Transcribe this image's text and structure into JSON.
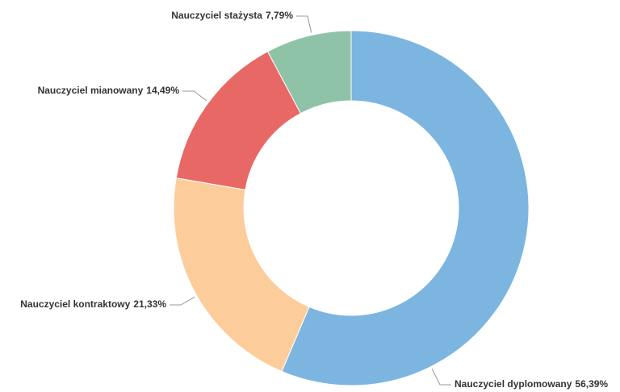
{
  "chart_data": {
    "type": "donut",
    "categories": [
      "Nauczyciel dyplomowany",
      "Nauczyciel kontraktowy",
      "Nauczyciel mianowany",
      "Nauczyciel stażysta"
    ],
    "values": [
      56.39,
      21.33,
      14.49,
      7.79
    ],
    "value_labels": [
      "56,39%",
      "21,33%",
      "14,49%",
      "7,79%"
    ],
    "colors": [
      "#7cb5e0",
      "#fccd9a",
      "#e86866",
      "#8ec3a8"
    ]
  }
}
